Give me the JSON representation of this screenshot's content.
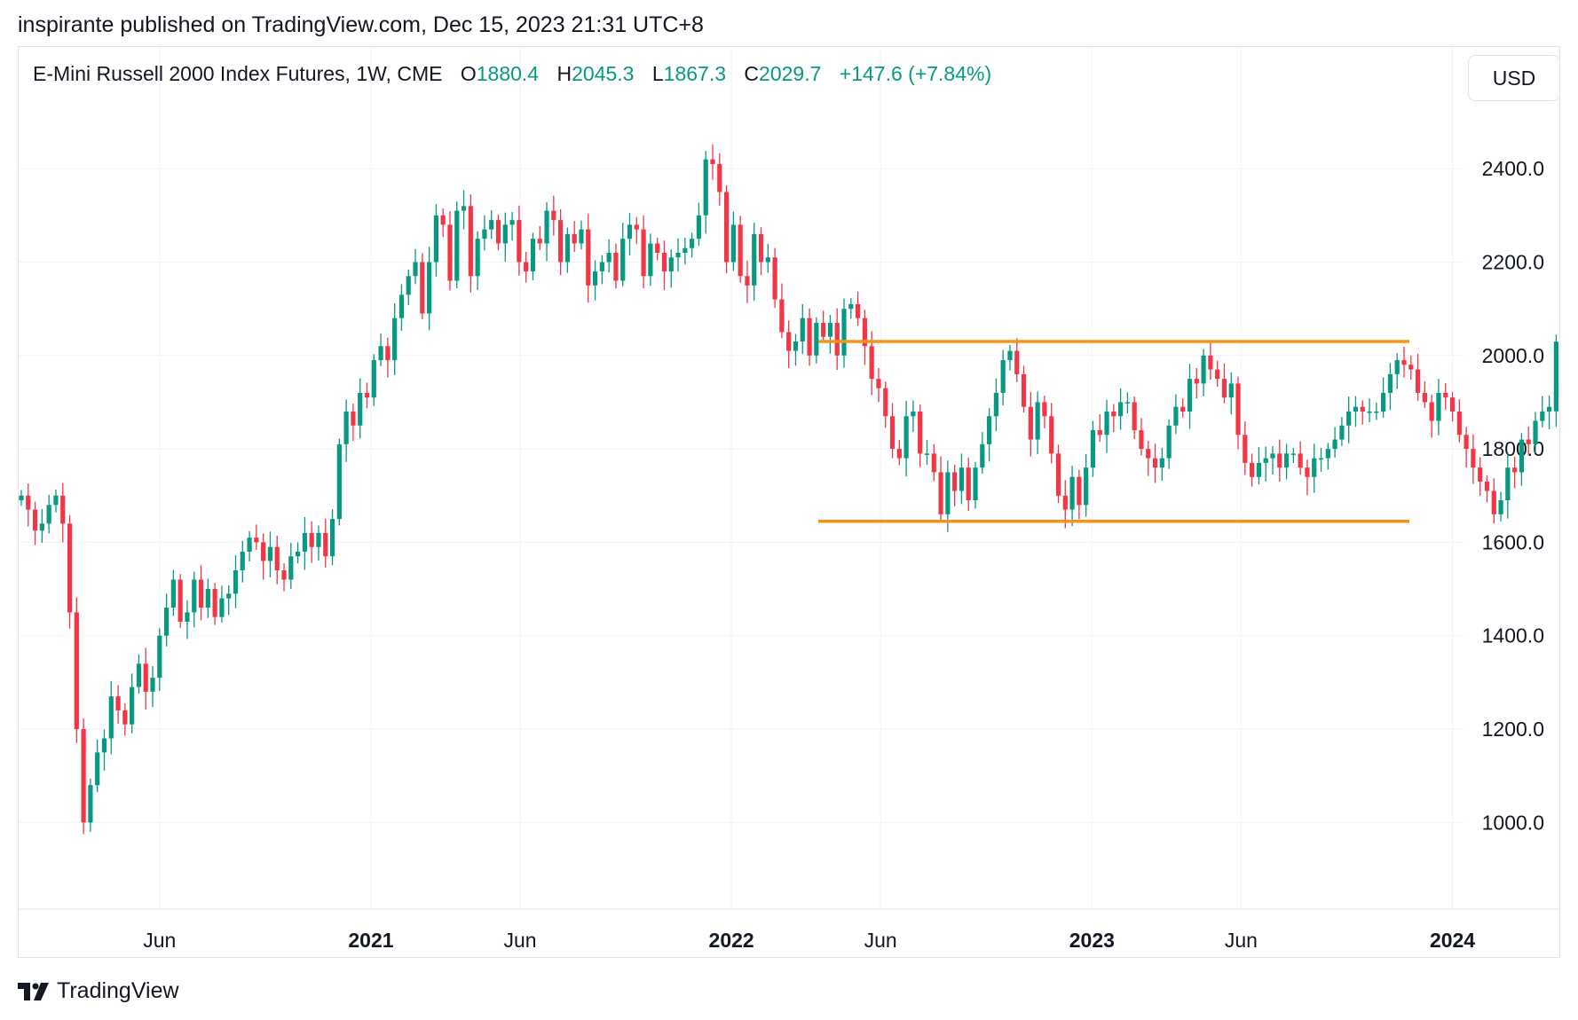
{
  "header": {
    "text": "inspirante published on TradingView.com, Dec 15, 2023 21:31 UTC+8"
  },
  "legend": {
    "symbol": "E-Mini Russell 2000 Index Futures, 1W, CME",
    "o_label": "O",
    "o_value": "1880.4",
    "h_label": "H",
    "h_value": "2045.3",
    "l_label": "L",
    "l_value": "1867.3",
    "c_label": "C",
    "c_value": "2029.7",
    "change": "+147.6 (+7.84%)"
  },
  "currency": "USD",
  "brand": {
    "name": "TradingView",
    "icon": "tradingview-logo-icon"
  },
  "colors": {
    "up": "#089981",
    "down": "#f23645",
    "level": "#f7931a",
    "grid": "#f0f3fa",
    "text": "#131722"
  },
  "chart_data": {
    "type": "candlestick",
    "interval": "1W",
    "ylim": [
      800,
      2600
    ],
    "y_ticks": [
      "1000.0",
      "1200.0",
      "1400.0",
      "1600.0",
      "1800.0",
      "2000.0",
      "2200.0",
      "2400.0"
    ],
    "x_ticks": [
      {
        "label": "Jun",
        "date": "2020-06-01",
        "bold": false
      },
      {
        "label": "2021",
        "date": "2021-01-01",
        "bold": true
      },
      {
        "label": "Jun",
        "date": "2021-06-01",
        "bold": false
      },
      {
        "label": "2022",
        "date": "2022-01-01",
        "bold": true
      },
      {
        "label": "Jun",
        "date": "2022-06-01",
        "bold": false
      },
      {
        "label": "2023",
        "date": "2023-01-01",
        "bold": true
      },
      {
        "label": "Jun",
        "date": "2023-06-01",
        "bold": false
      },
      {
        "label": "2024",
        "date": "2024-01-01",
        "bold": true
      }
    ],
    "start_date": "2020-01-13",
    "closes": [
      1700,
      1670,
      1625,
      1640,
      1680,
      1700,
      1640,
      1450,
      1200,
      1000,
      1080,
      1150,
      1180,
      1270,
      1240,
      1210,
      1290,
      1340,
      1280,
      1310,
      1400,
      1460,
      1520,
      1430,
      1450,
      1520,
      1460,
      1500,
      1440,
      1480,
      1490,
      1540,
      1580,
      1610,
      1600,
      1560,
      1590,
      1540,
      1520,
      1570,
      1580,
      1620,
      1590,
      1620,
      1570,
      1650,
      1810,
      1880,
      1850,
      1920,
      1910,
      1990,
      2020,
      1990,
      2080,
      2130,
      2170,
      2200,
      2090,
      2200,
      2300,
      2280,
      2160,
      2310,
      2320,
      2170,
      2250,
      2270,
      2290,
      2240,
      2280,
      2290,
      2200,
      2180,
      2250,
      2240,
      2310,
      2290,
      2200,
      2260,
      2240,
      2270,
      2150,
      2180,
      2200,
      2220,
      2160,
      2250,
      2280,
      2270,
      2170,
      2240,
      2220,
      2180,
      2210,
      2220,
      2230,
      2250,
      2300,
      2420,
      2410,
      2350,
      2200,
      2280,
      2170,
      2150,
      2260,
      2200,
      2210,
      2120,
      2050,
      2010,
      2030,
      2080,
      2000,
      2070,
      2040,
      2070,
      2000,
      2100,
      2110,
      2080,
      2020,
      1950,
      1930,
      1870,
      1800,
      1780,
      1870,
      1880,
      1790,
      1790,
      1750,
      1660,
      1750,
      1710,
      1760,
      1690,
      1760,
      1810,
      1870,
      1920,
      1990,
      2010,
      1960,
      1890,
      1820,
      1900,
      1870,
      1790,
      1700,
      1670,
      1740,
      1680,
      1760,
      1840,
      1830,
      1880,
      1870,
      1900,
      1900,
      1840,
      1800,
      1780,
      1760,
      1780,
      1850,
      1890,
      1880,
      1950,
      1940,
      2000,
      1970,
      1950,
      1910,
      1940,
      1830,
      1770,
      1740,
      1770,
      1780,
      1790,
      1760,
      1790,
      1790,
      1760,
      1740,
      1780,
      1780,
      1800,
      1820,
      1850,
      1880,
      1890,
      1880,
      1880,
      1880,
      1920,
      1960,
      1990,
      1980,
      1970,
      1920,
      1900,
      1860,
      1920,
      1910,
      1880,
      1830,
      1800,
      1760,
      1730,
      1710,
      1660,
      1690,
      1760,
      1750,
      1820,
      1810,
      1860,
      1880,
      1890,
      2029.7
    ]
  }
}
